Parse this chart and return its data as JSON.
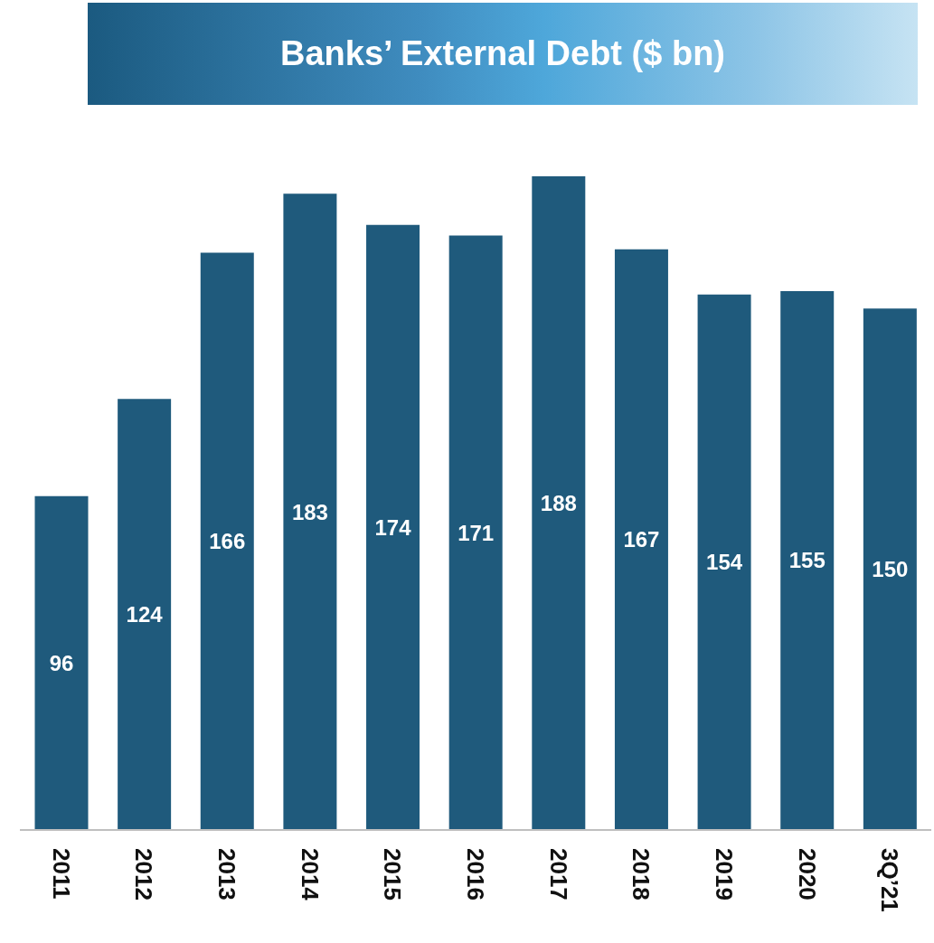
{
  "chart_data": {
    "type": "bar",
    "title": "Banks’ External Debt ($ bn)",
    "categories": [
      "2011",
      "2012",
      "2013",
      "2014",
      "2015",
      "2016",
      "2017",
      "2018",
      "2019",
      "2020",
      "3Q’21"
    ],
    "values": [
      96,
      124,
      166,
      183,
      174,
      171,
      188,
      167,
      154,
      155,
      150
    ],
    "color": "#1f5a7c",
    "data_labels": true
  }
}
